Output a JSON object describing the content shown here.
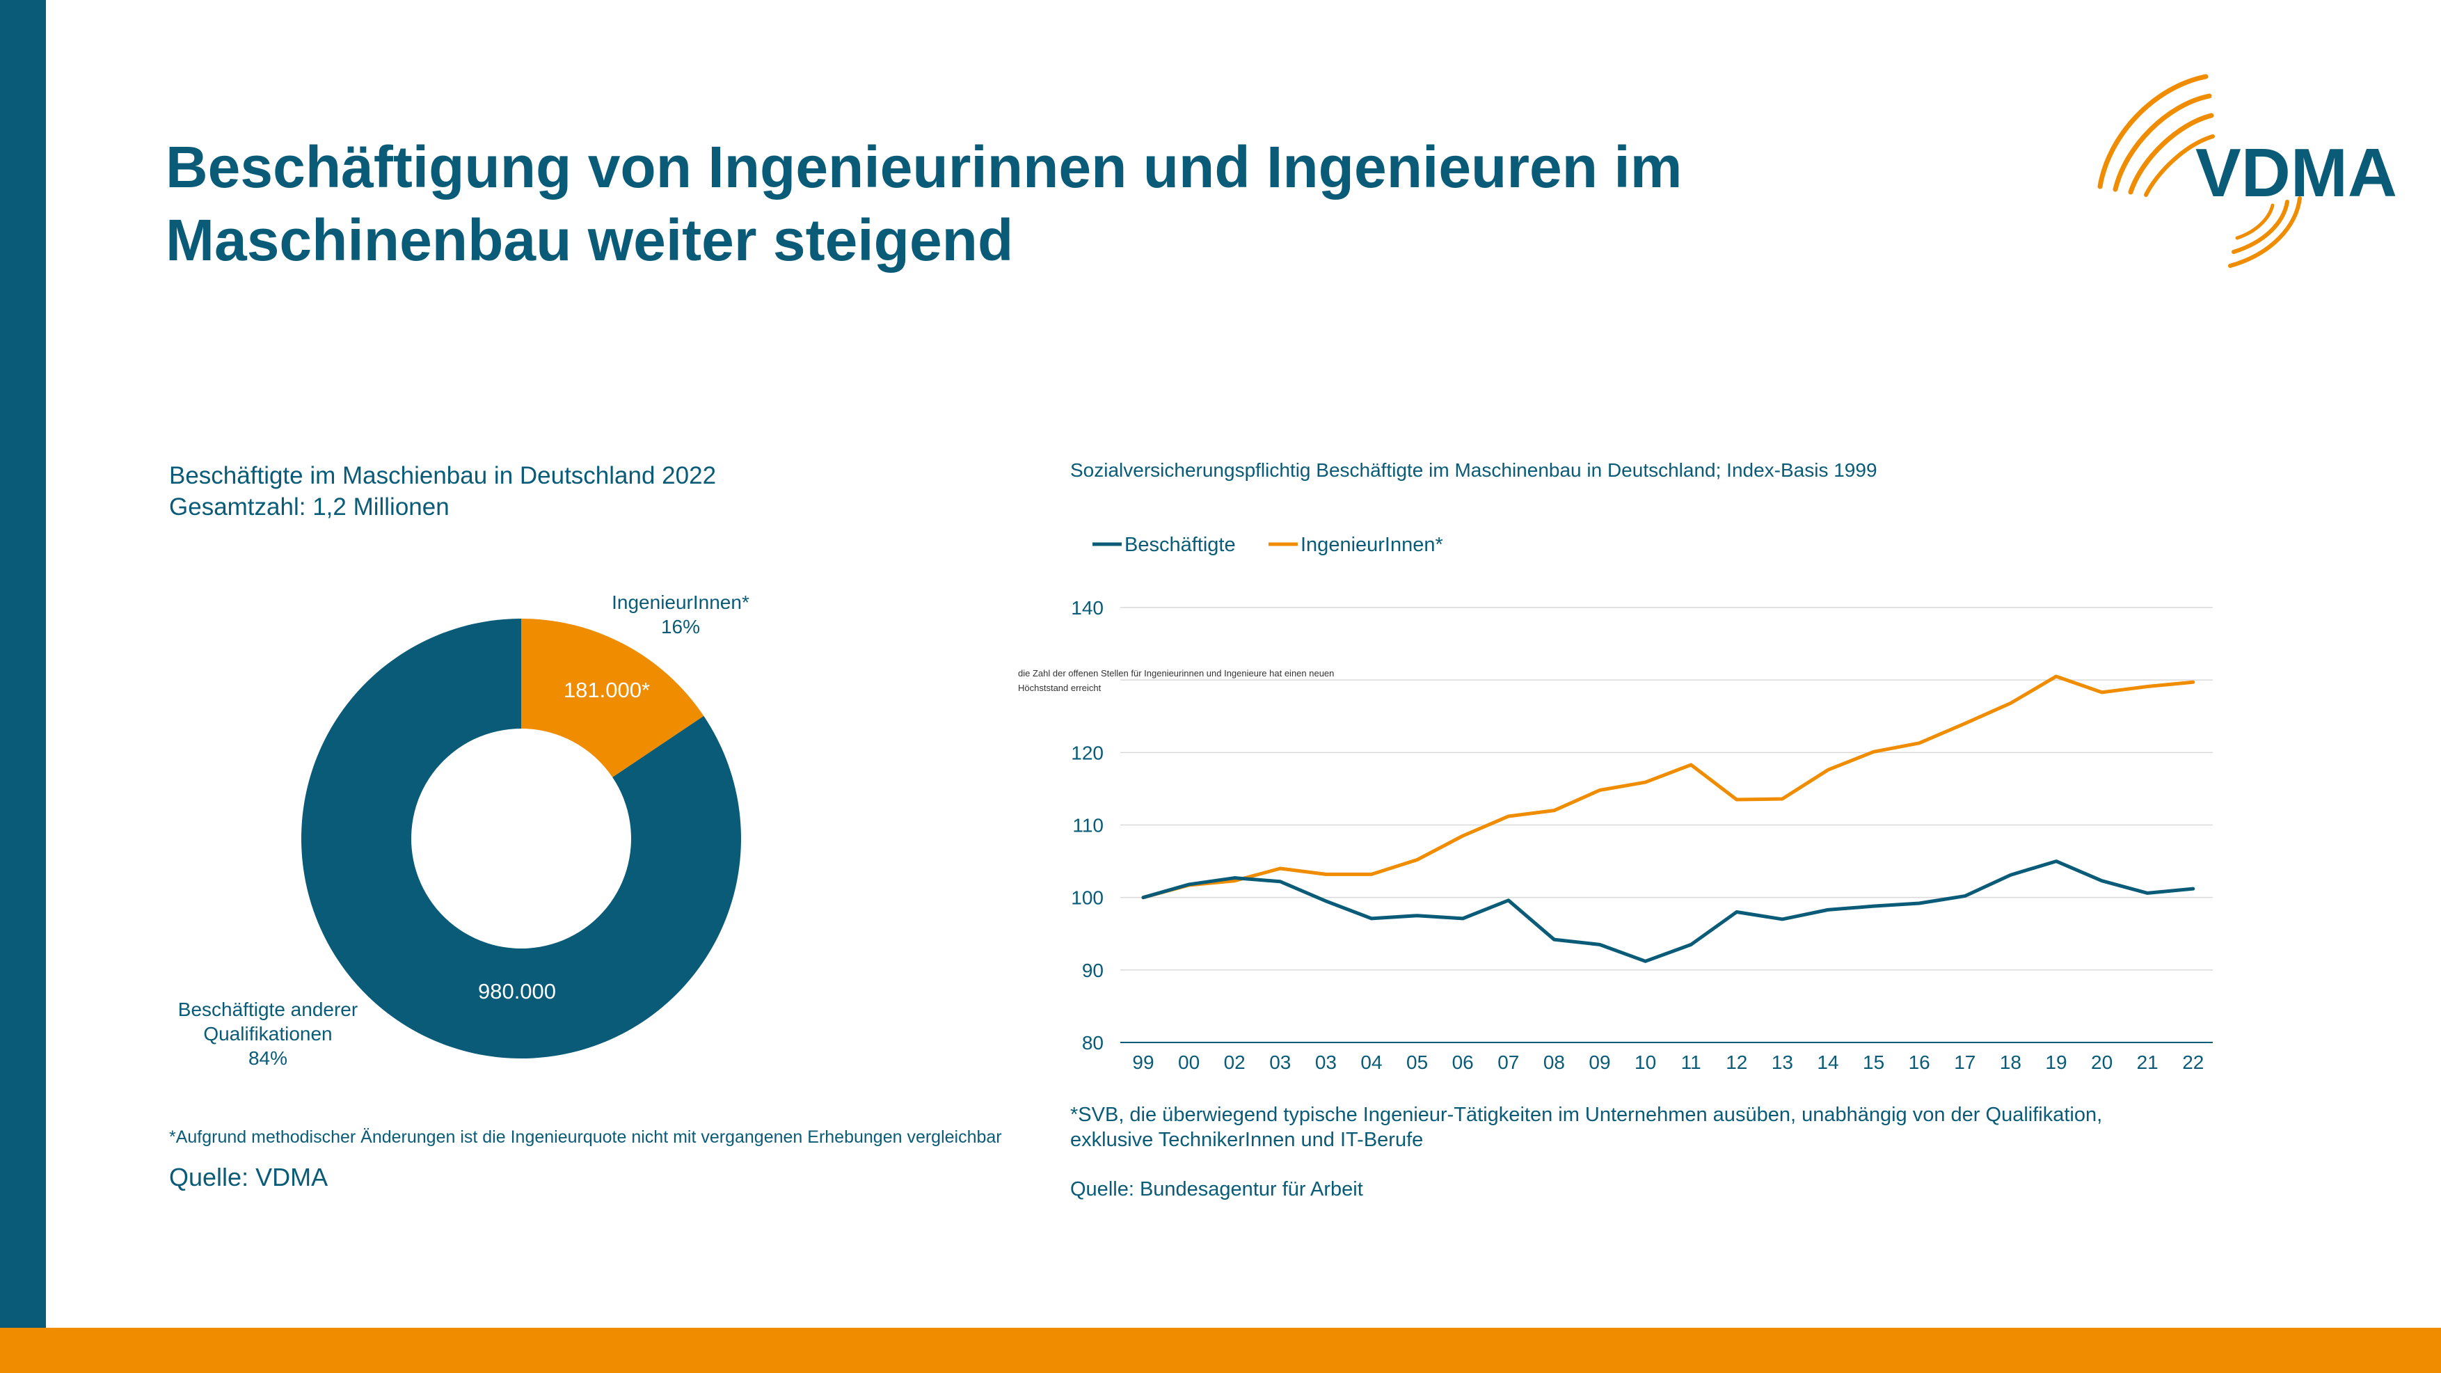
{
  "title": "Beschäftigung von Ingenieurinnen und Ingenieuren im Maschinenbau weiter steigend",
  "logo": {
    "text": "VDMA",
    "icon": "vdma-arcs-logo"
  },
  "colors": {
    "primary": "#0a5b78",
    "accent": "#f08c00",
    "grid": "#d9d9d9"
  },
  "donut": {
    "title_line1": "Beschäftigte im Maschienbau in Deutschland 2022",
    "title_line2": "Gesamtzahl: 1,2 Millionen",
    "footnote": "*Aufgrund methodischer Änderungen ist die Ingenieurquote nicht mit vergangenen Erhebungen vergleichbar",
    "source": "Quelle: VDMA"
  },
  "line": {
    "title": "Sozialversicherungspflichtig Beschäftigte im Maschinenbau in Deutschland; Index-Basis 1999",
    "footnote_line1": "*SVB, die überwiegend typische Ingenieur-Tätigkeiten im Unternehmen ausüben, unabhängig von der Qualifikation,",
    "footnote_line2": "exklusive TechnikerInnen und IT-Berufe",
    "source": "Quelle: Bundesagentur für Arbeit"
  },
  "chart_data": [
    {
      "type": "pie",
      "variant": "donut",
      "title": "Beschäftigte im Maschienbau in Deutschland 2022",
      "subtitle": "Gesamtzahl: 1,2 Millionen",
      "slices": [
        {
          "name": "IngenieurInnen*",
          "value": 181000,
          "value_label": "181.000*",
          "percent_label": "16%",
          "color": "#f08c00"
        },
        {
          "name": "Beschäftigte anderer Qualifikationen",
          "name_line1": "Beschäftigte anderer",
          "name_line2": "Qualifikationen",
          "value": 980000,
          "value_label": "980.000",
          "percent_label": "84%",
          "color": "#0a5b78"
        }
      ]
    },
    {
      "type": "line",
      "title": "Sozialversicherungspflichtig Beschäftigte im Maschinenbau in Deutschland; Index-Basis 1999",
      "categories": [
        "99",
        "00",
        "02",
        "03",
        "03",
        "04",
        "05",
        "06",
        "07",
        "08",
        "09",
        "10",
        "11",
        "12",
        "13",
        "14",
        "15",
        "16",
        "17",
        "18",
        "19",
        "20",
        "21",
        "22"
      ],
      "series": [
        {
          "name": "Beschäftigte",
          "color": "#0a5b78",
          "values": [
            100,
            101.8,
            102.7,
            102.2,
            99.5,
            97.1,
            97.5,
            97.1,
            99.6,
            94.2,
            93.5,
            91.2,
            93.5,
            98,
            97,
            98.3,
            98.8,
            99.2,
            100.2,
            103.1,
            105,
            102.3,
            100.6,
            101.2
          ]
        },
        {
          "name": "IngenieurInnen*",
          "color": "#f08c00",
          "values": [
            100,
            101.7,
            102.3,
            104,
            103.2,
            103.2,
            105.2,
            108.5,
            111.2,
            112,
            114.8,
            115.9,
            118.3,
            113.5,
            113.6,
            117.6,
            120.1,
            121.3,
            124,
            126.8,
            130.5,
            128.3,
            129.1,
            129.7
          ]
        }
      ],
      "ylim": [
        80,
        140
      ],
      "yticks": [
        80,
        90,
        100,
        110,
        120,
        140
      ],
      "annotation_line1": "die Zahl der offenen Stellen für Ingenieurinnen und Ingenieure hat einen neuen",
      "annotation_line2": "Höchststand erreicht",
      "legend_position": "top-left",
      "grid": true
    }
  ]
}
